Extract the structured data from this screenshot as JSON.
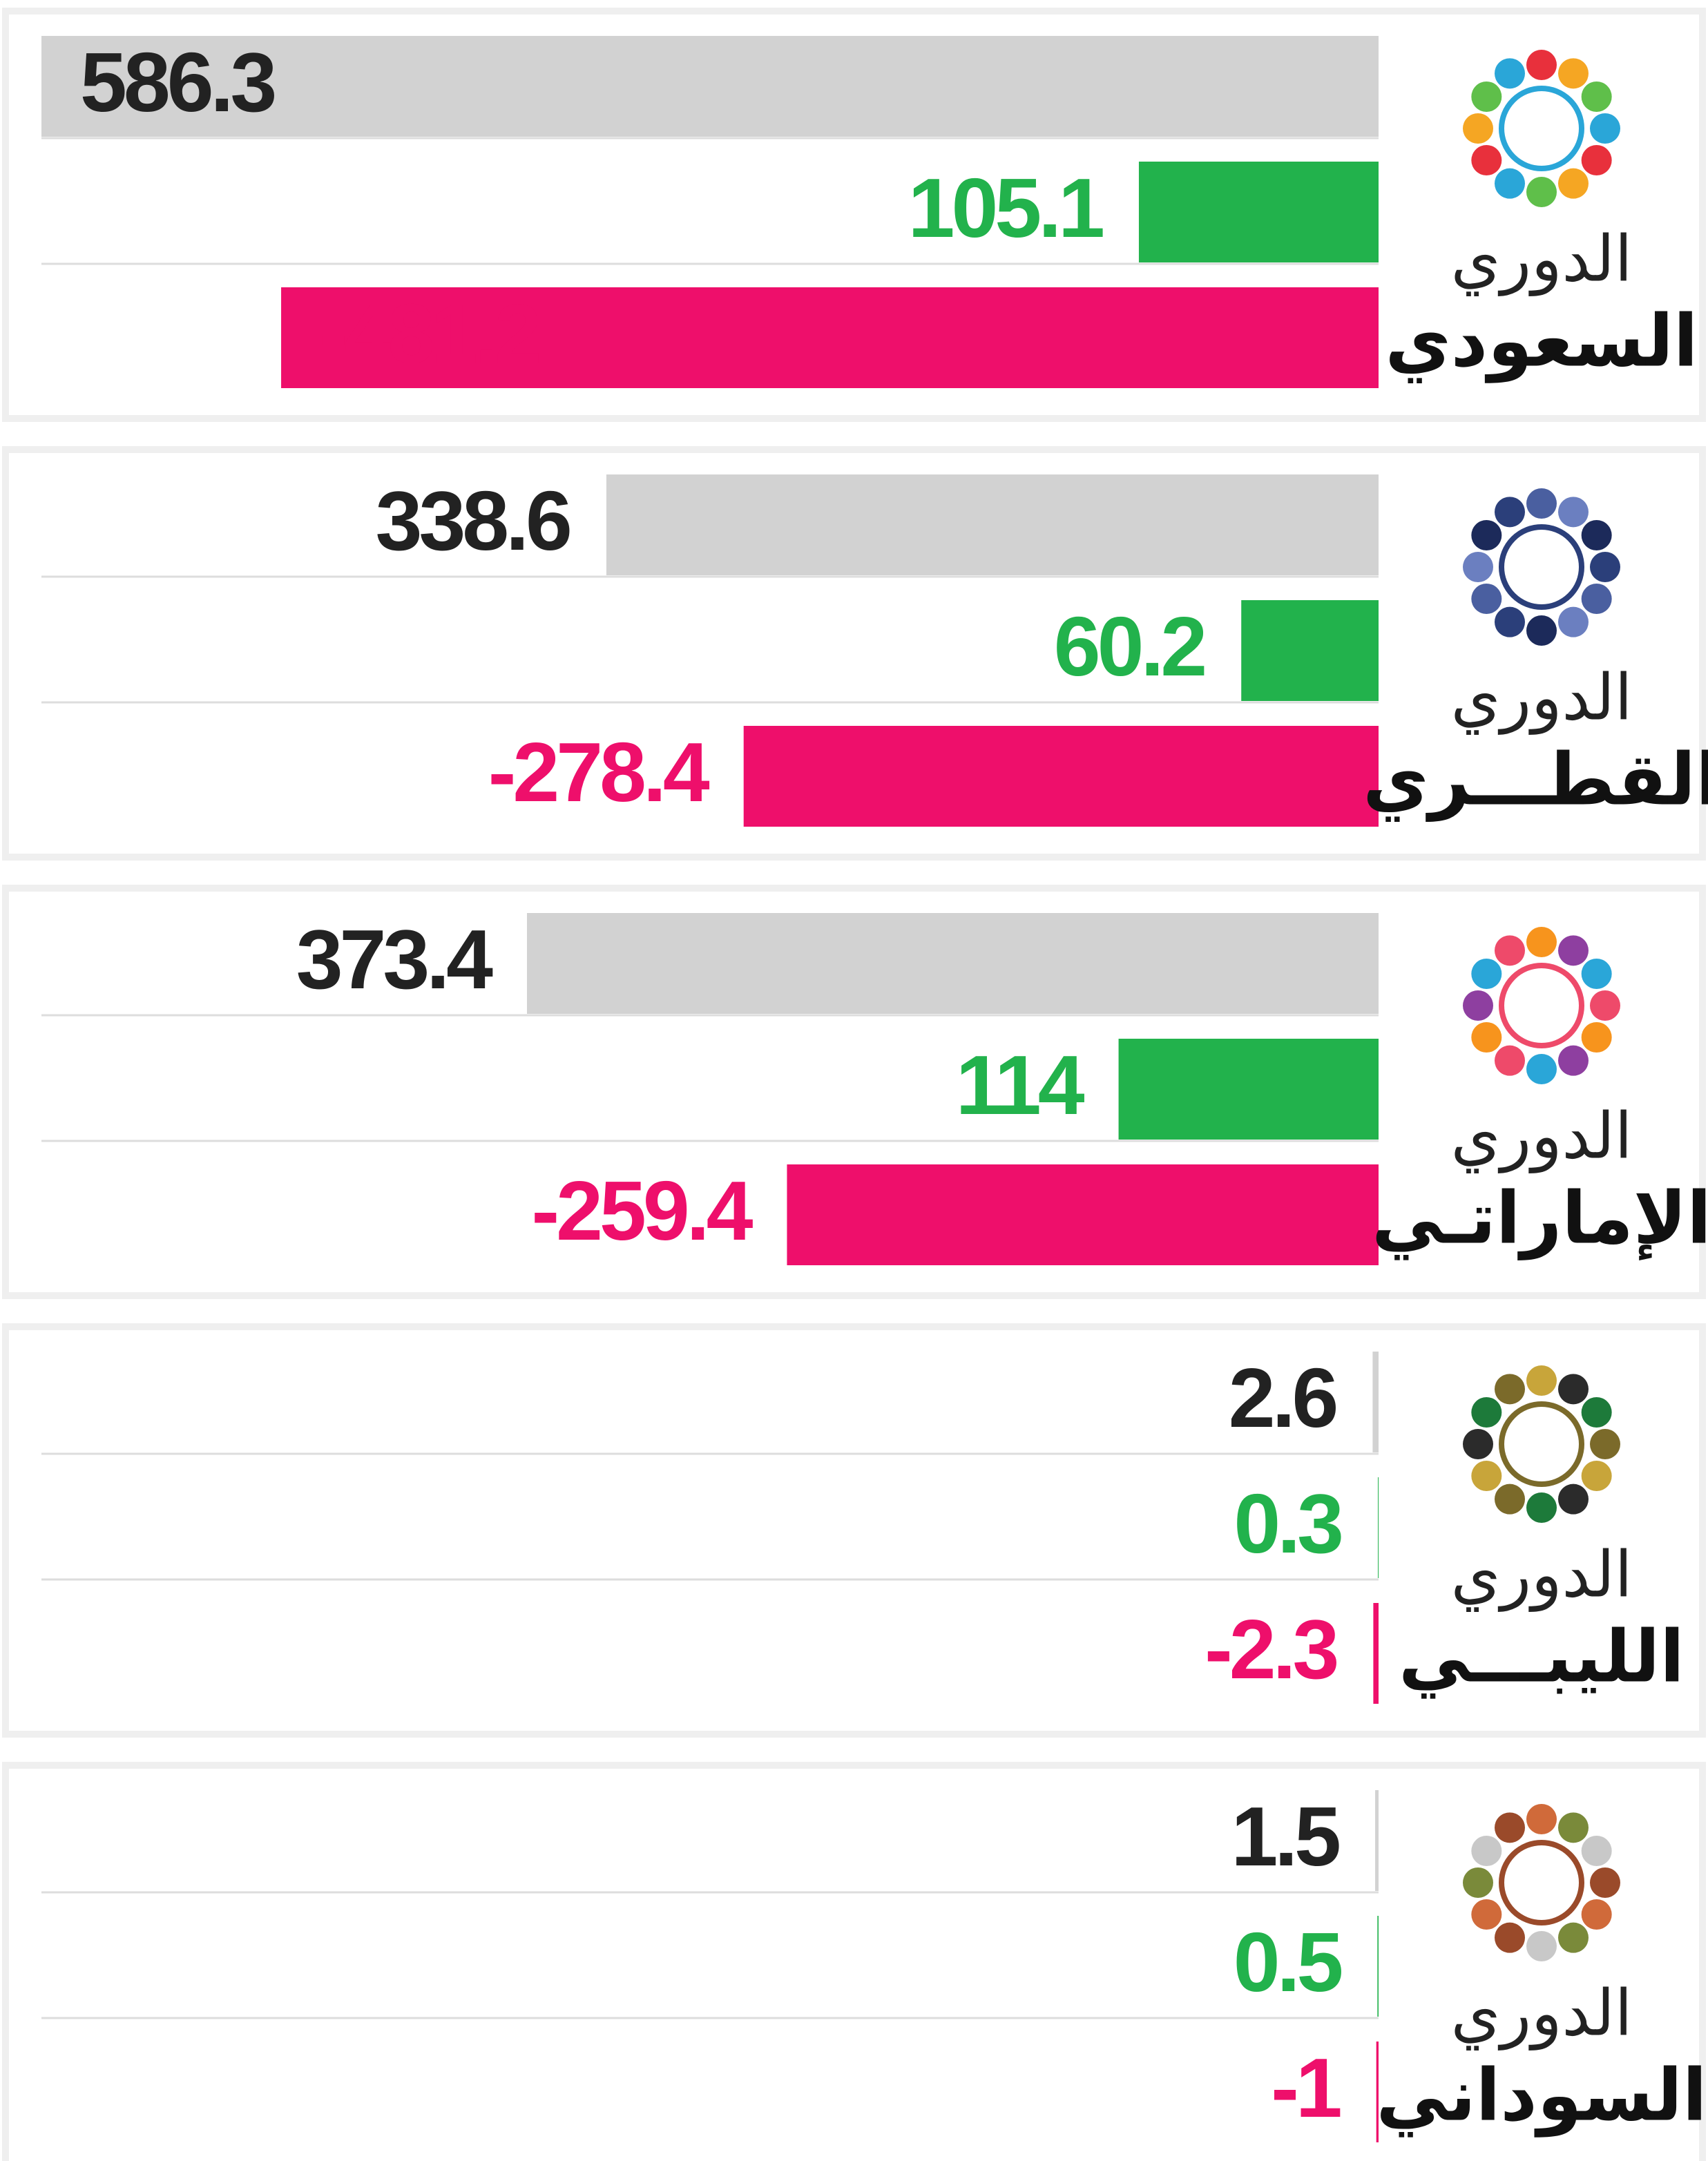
{
  "chart_data": [
    {
      "type": "bar",
      "title": "الدوري",
      "subtitle": "السعودي",
      "values": [
        586.3,
        105.1,
        -481.2
      ],
      "colors": [
        "#d2d2d2",
        "#22b24c",
        "#ee0f6b"
      ]
    },
    {
      "type": "bar",
      "title": "الدوري",
      "subtitle": "القطـــري",
      "values": [
        338.6,
        60.2,
        -278.4
      ],
      "colors": [
        "#d2d2d2",
        "#22b24c",
        "#ee0f6b"
      ]
    },
    {
      "type": "bar",
      "title": "الدوري",
      "subtitle": "الإماراتـي",
      "values": [
        373.4,
        114,
        -259.4
      ],
      "colors": [
        "#d2d2d2",
        "#22b24c",
        "#ee0f6b"
      ]
    },
    {
      "type": "bar",
      "title": "الدوري",
      "subtitle": "الليبـــي",
      "values": [
        2.6,
        0.3,
        -2.3
      ],
      "colors": [
        "#d2d2d2",
        "#22b24c",
        "#ee0f6b"
      ]
    },
    {
      "type": "bar",
      "title": "الدوري",
      "subtitle": "السوداني",
      "values": [
        1.5,
        0.5,
        -1
      ],
      "colors": [
        "#d2d2d2",
        "#22b24c",
        "#ee0f6b"
      ]
    }
  ]
}
